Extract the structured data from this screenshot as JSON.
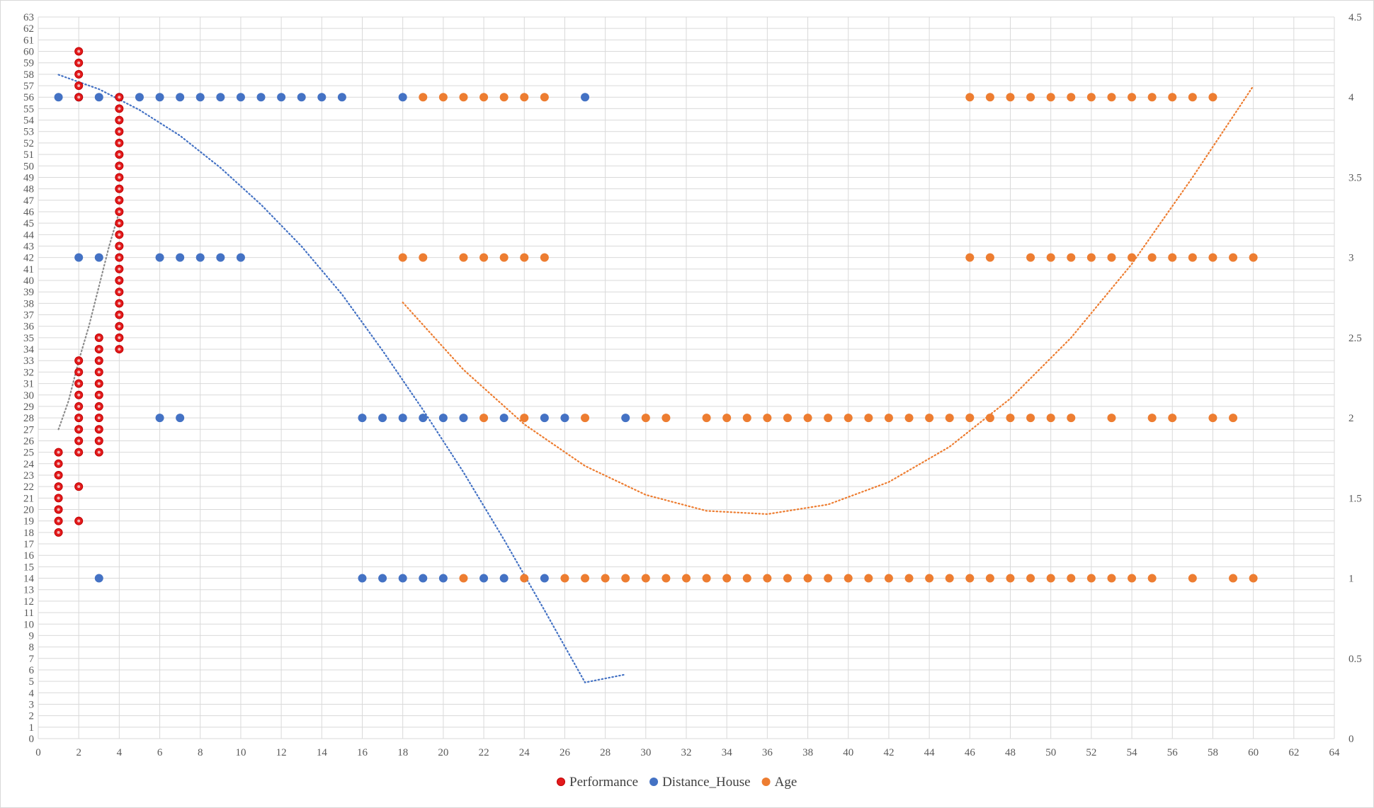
{
  "chart_data": {
    "type": "scatter",
    "title": "",
    "xlabel": "",
    "ylabel": "",
    "x_range": [
      0,
      64
    ],
    "x_tick_step": 2,
    "y_left_range": [
      0,
      63
    ],
    "y_left_tick_step": 1,
    "y_right_range": [
      0,
      4.5
    ],
    "y_right_ticks": [
      "0",
      "0.5",
      "1",
      "1.5",
      "2",
      "2.5",
      "3",
      "3.5",
      "4",
      "4.5"
    ],
    "grid": true,
    "legend_position": "bottom",
    "legend": [
      "Performance",
      "Distance_House",
      "Age"
    ],
    "colors": {
      "Performance": "#e31a1c",
      "Distance_House": "#4472c4",
      "Age": "#ed7d31",
      "performance_trend": "#8c8c8c"
    },
    "series": [
      {
        "name": "Performance",
        "axis": "left",
        "points": [
          [
            1,
            18
          ],
          [
            1,
            19
          ],
          [
            1,
            20
          ],
          [
            1,
            21
          ],
          [
            1,
            22
          ],
          [
            1,
            23
          ],
          [
            1,
            24
          ],
          [
            1,
            25
          ],
          [
            2,
            19
          ],
          [
            2,
            22
          ],
          [
            2,
            25
          ],
          [
            2,
            26
          ],
          [
            2,
            27
          ],
          [
            2,
            28
          ],
          [
            2,
            29
          ],
          [
            2,
            30
          ],
          [
            2,
            31
          ],
          [
            2,
            32
          ],
          [
            2,
            33
          ],
          [
            2,
            56
          ],
          [
            2,
            57
          ],
          [
            2,
            58
          ],
          [
            2,
            59
          ],
          [
            2,
            60
          ],
          [
            3,
            25
          ],
          [
            3,
            26
          ],
          [
            3,
            27
          ],
          [
            3,
            28
          ],
          [
            3,
            29
          ],
          [
            3,
            30
          ],
          [
            3,
            31
          ],
          [
            3,
            32
          ],
          [
            3,
            33
          ],
          [
            3,
            34
          ],
          [
            3,
            35
          ],
          [
            4,
            34
          ],
          [
            4,
            35
          ],
          [
            4,
            36
          ],
          [
            4,
            37
          ],
          [
            4,
            38
          ],
          [
            4,
            39
          ],
          [
            4,
            40
          ],
          [
            4,
            41
          ],
          [
            4,
            42
          ],
          [
            4,
            43
          ],
          [
            4,
            44
          ],
          [
            4,
            45
          ],
          [
            4,
            46
          ],
          [
            4,
            47
          ],
          [
            4,
            48
          ],
          [
            4,
            49
          ],
          [
            4,
            50
          ],
          [
            4,
            51
          ],
          [
            4,
            52
          ],
          [
            4,
            53
          ],
          [
            4,
            54
          ],
          [
            4,
            55
          ],
          [
            4,
            56
          ]
        ]
      },
      {
        "name": "Distance_House",
        "axis": "right",
        "points": [
          [
            1,
            4
          ],
          [
            2,
            4
          ],
          [
            3,
            4
          ],
          [
            4,
            4
          ],
          [
            5,
            4
          ],
          [
            6,
            4
          ],
          [
            7,
            4
          ],
          [
            8,
            4
          ],
          [
            9,
            4
          ],
          [
            10,
            4
          ],
          [
            11,
            4
          ],
          [
            12,
            4
          ],
          [
            13,
            4
          ],
          [
            14,
            4
          ],
          [
            15,
            4
          ],
          [
            18,
            4
          ],
          [
            27,
            4
          ],
          [
            2,
            3
          ],
          [
            3,
            3
          ],
          [
            6,
            3
          ],
          [
            7,
            3
          ],
          [
            8,
            3
          ],
          [
            9,
            3
          ],
          [
            10,
            3
          ],
          [
            6,
            2
          ],
          [
            7,
            2
          ],
          [
            16,
            2
          ],
          [
            17,
            2
          ],
          [
            18,
            2
          ],
          [
            19,
            2
          ],
          [
            20,
            2
          ],
          [
            21,
            2
          ],
          [
            23,
            2
          ],
          [
            25,
            2
          ],
          [
            26,
            2
          ],
          [
            29,
            2
          ],
          [
            3,
            1
          ],
          [
            16,
            1
          ],
          [
            17,
            1
          ],
          [
            18,
            1
          ],
          [
            19,
            1
          ],
          [
            20,
            1
          ],
          [
            22,
            1
          ],
          [
            23,
            1
          ],
          [
            25,
            1
          ]
        ]
      },
      {
        "name": "Age",
        "axis": "right",
        "points": [
          [
            19,
            4
          ],
          [
            20,
            4
          ],
          [
            21,
            4
          ],
          [
            22,
            4
          ],
          [
            23,
            4
          ],
          [
            24,
            4
          ],
          [
            25,
            4
          ],
          [
            46,
            4
          ],
          [
            47,
            4
          ],
          [
            48,
            4
          ],
          [
            49,
            4
          ],
          [
            50,
            4
          ],
          [
            51,
            4
          ],
          [
            52,
            4
          ],
          [
            53,
            4
          ],
          [
            54,
            4
          ],
          [
            55,
            4
          ],
          [
            56,
            4
          ],
          [
            57,
            4
          ],
          [
            58,
            4
          ],
          [
            18,
            3
          ],
          [
            19,
            3
          ],
          [
            21,
            3
          ],
          [
            22,
            3
          ],
          [
            23,
            3
          ],
          [
            24,
            3
          ],
          [
            25,
            3
          ],
          [
            46,
            3
          ],
          [
            47,
            3
          ],
          [
            49,
            3
          ],
          [
            50,
            3
          ],
          [
            51,
            3
          ],
          [
            52,
            3
          ],
          [
            53,
            3
          ],
          [
            54,
            3
          ],
          [
            55,
            3
          ],
          [
            56,
            3
          ],
          [
            57,
            3
          ],
          [
            58,
            3
          ],
          [
            59,
            3
          ],
          [
            60,
            3
          ],
          [
            22,
            2
          ],
          [
            24,
            2
          ],
          [
            27,
            2
          ],
          [
            30,
            2
          ],
          [
            31,
            2
          ],
          [
            33,
            2
          ],
          [
            34,
            2
          ],
          [
            35,
            2
          ],
          [
            36,
            2
          ],
          [
            37,
            2
          ],
          [
            38,
            2
          ],
          [
            39,
            2
          ],
          [
            40,
            2
          ],
          [
            41,
            2
          ],
          [
            42,
            2
          ],
          [
            43,
            2
          ],
          [
            44,
            2
          ],
          [
            45,
            2
          ],
          [
            46,
            2
          ],
          [
            47,
            2
          ],
          [
            48,
            2
          ],
          [
            49,
            2
          ],
          [
            50,
            2
          ],
          [
            51,
            2
          ],
          [
            53,
            2
          ],
          [
            55,
            2
          ],
          [
            56,
            2
          ],
          [
            58,
            2
          ],
          [
            59,
            2
          ],
          [
            21,
            1
          ],
          [
            24,
            1
          ],
          [
            26,
            1
          ],
          [
            27,
            1
          ],
          [
            28,
            1
          ],
          [
            29,
            1
          ],
          [
            30,
            1
          ],
          [
            31,
            1
          ],
          [
            32,
            1
          ],
          [
            33,
            1
          ],
          [
            34,
            1
          ],
          [
            35,
            1
          ],
          [
            36,
            1
          ],
          [
            37,
            1
          ],
          [
            38,
            1
          ],
          [
            39,
            1
          ],
          [
            40,
            1
          ],
          [
            41,
            1
          ],
          [
            42,
            1
          ],
          [
            43,
            1
          ],
          [
            44,
            1
          ],
          [
            45,
            1
          ],
          [
            46,
            1
          ],
          [
            47,
            1
          ],
          [
            48,
            1
          ],
          [
            49,
            1
          ],
          [
            50,
            1
          ],
          [
            51,
            1
          ],
          [
            52,
            1
          ],
          [
            53,
            1
          ],
          [
            54,
            1
          ],
          [
            55,
            1
          ],
          [
            57,
            1
          ],
          [
            59,
            1
          ],
          [
            60,
            1
          ]
        ]
      }
    ],
    "trendlines": [
      {
        "series": "Performance",
        "axis": "left",
        "style": "dotted",
        "points": [
          [
            1,
            27
          ],
          [
            1.5,
            29.5
          ],
          [
            2,
            33
          ],
          [
            2.5,
            36
          ],
          [
            3,
            39.5
          ],
          [
            3.5,
            43
          ],
          [
            4,
            46
          ]
        ]
      },
      {
        "series": "Distance_House",
        "axis": "right",
        "style": "dotted",
        "points": [
          [
            1,
            4.14
          ],
          [
            3,
            4.05
          ],
          [
            5,
            3.92
          ],
          [
            7,
            3.76
          ],
          [
            9,
            3.56
          ],
          [
            11,
            3.33
          ],
          [
            13,
            3.07
          ],
          [
            15,
            2.77
          ],
          [
            17,
            2.42
          ],
          [
            19,
            2.05
          ],
          [
            21,
            1.66
          ],
          [
            23,
            1.24
          ],
          [
            25,
            0.8
          ],
          [
            27,
            0.35
          ],
          [
            29,
            0.4
          ]
        ]
      },
      {
        "series": "Age",
        "axis": "right",
        "style": "dotted",
        "points": [
          [
            18,
            2.72
          ],
          [
            21,
            2.3
          ],
          [
            24,
            1.96
          ],
          [
            27,
            1.7
          ],
          [
            30,
            1.52
          ],
          [
            33,
            1.42
          ],
          [
            36,
            1.4
          ],
          [
            39,
            1.46
          ],
          [
            42,
            1.6
          ],
          [
            45,
            1.82
          ],
          [
            48,
            2.12
          ],
          [
            51,
            2.5
          ],
          [
            54,
            2.96
          ],
          [
            57,
            3.5
          ],
          [
            60,
            4.07
          ]
        ]
      }
    ]
  }
}
